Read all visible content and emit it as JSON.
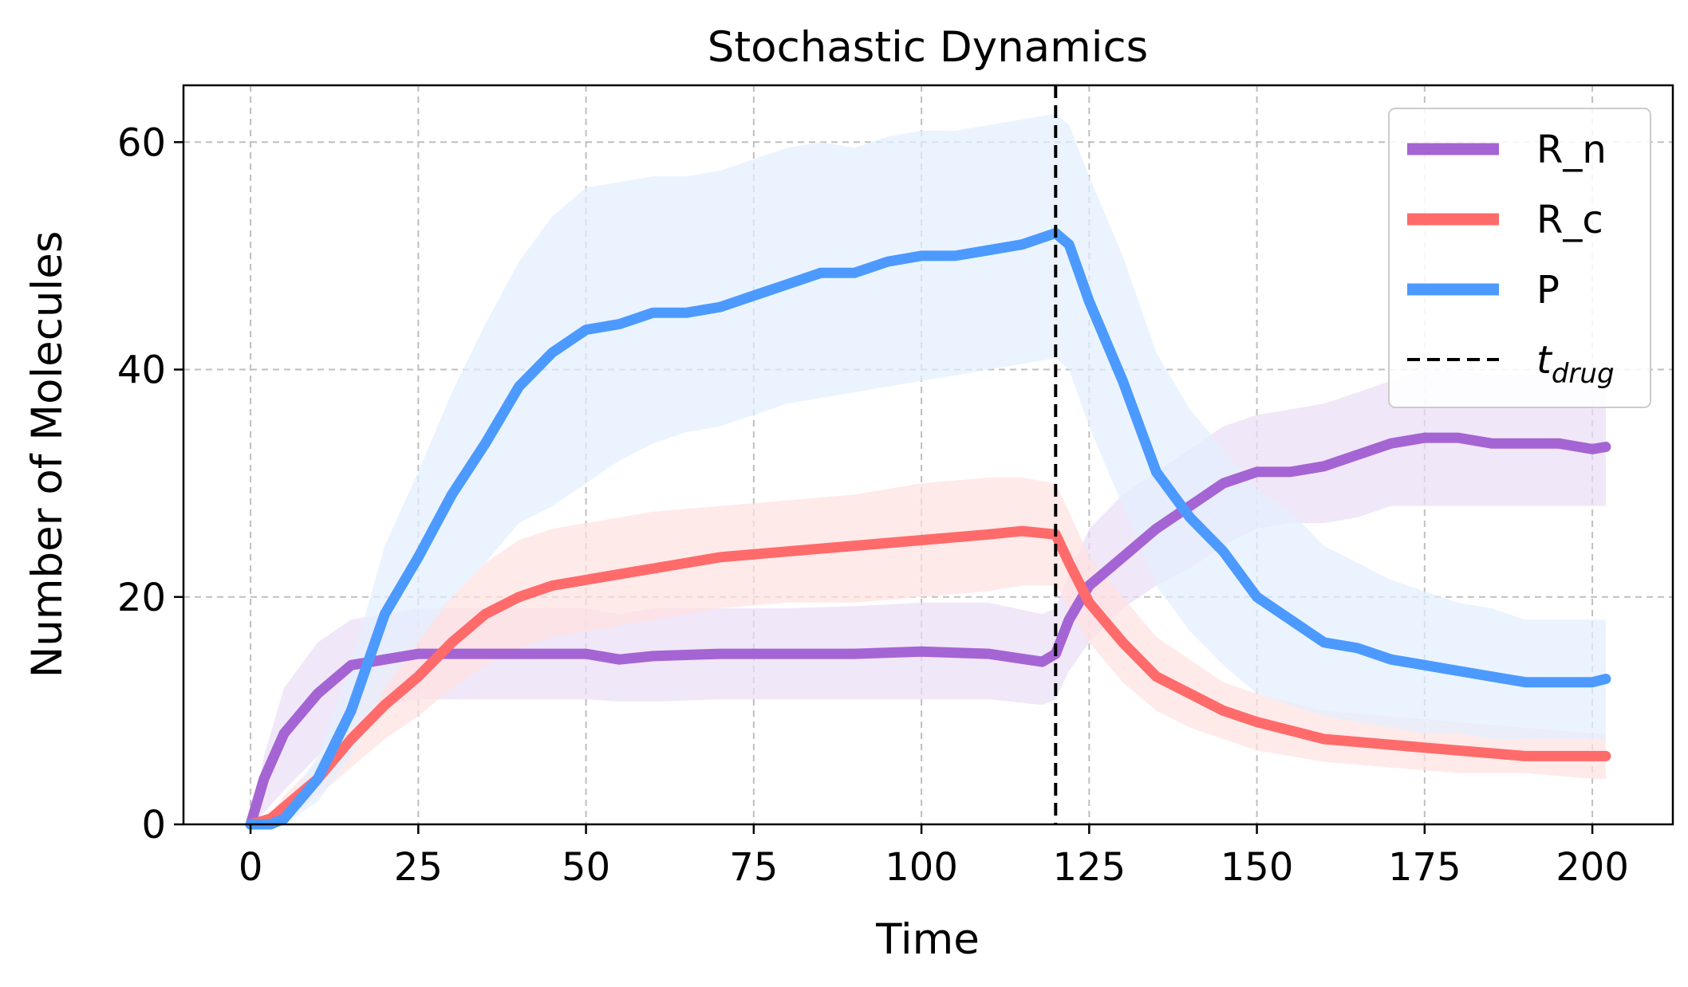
{
  "chart_data": {
    "type": "line",
    "title": "Stochastic Dynamics",
    "xlabel": "Time",
    "ylabel": "Number of Molecules",
    "xlim": [
      -10,
      212
    ],
    "ylim": [
      0,
      65
    ],
    "xticks": [
      0,
      25,
      50,
      75,
      100,
      125,
      150,
      175,
      200
    ],
    "yticks": [
      0,
      20,
      40,
      60
    ],
    "grid": true,
    "legend_position": "top-right",
    "vline": {
      "x": 120,
      "label_base": "t",
      "label_sub": "drug",
      "color": "#000000",
      "style": "dashed"
    },
    "series": [
      {
        "name": "R_n",
        "color": "#A564D3",
        "band_color": "#E9DDF5",
        "x": [
          0,
          2,
          5,
          10,
          15,
          20,
          25,
          30,
          40,
          50,
          55,
          60,
          70,
          80,
          90,
          100,
          110,
          118,
          120,
          122,
          125,
          130,
          135,
          140,
          145,
          150,
          155,
          160,
          165,
          170,
          175,
          180,
          185,
          190,
          195,
          200,
          202
        ],
        "y": [
          0,
          4,
          8,
          11.5,
          14,
          14.5,
          15,
          15,
          15,
          15,
          14.5,
          14.8,
          15,
          15,
          15,
          15.2,
          15,
          14.3,
          15,
          18,
          21,
          23.5,
          26,
          28,
          30,
          31,
          31,
          31.5,
          32.5,
          33.5,
          34,
          34,
          33.5,
          33.5,
          33.5,
          33,
          33.2
        ],
        "lower": [
          0,
          1,
          3,
          6,
          9.5,
          10.5,
          11,
          11,
          11,
          11,
          10.8,
          10.8,
          11,
          11,
          11,
          11,
          11,
          10.5,
          11,
          13.5,
          16,
          19,
          21,
          22.5,
          24.5,
          26,
          26.5,
          26.5,
          27,
          28,
          28,
          28,
          28,
          28,
          28,
          28,
          28
        ],
        "upper": [
          0,
          6,
          12,
          16,
          18,
          18.5,
          19,
          19,
          19,
          19,
          18.5,
          19,
          19,
          19,
          19.2,
          19.5,
          19.5,
          18.5,
          19,
          22,
          26,
          29,
          31,
          33,
          35,
          36,
          36.5,
          37,
          38,
          39,
          40,
          40,
          39.5,
          39.5,
          39.5,
          39,
          39
        ]
      },
      {
        "name": "R_c",
        "color": "#FF6B6B",
        "band_color": "#FFE1E1",
        "x": [
          0,
          3,
          5,
          10,
          15,
          20,
          25,
          30,
          35,
          40,
          45,
          50,
          55,
          60,
          70,
          80,
          90,
          100,
          110,
          115,
          120,
          122,
          125,
          130,
          135,
          140,
          145,
          150,
          160,
          170,
          180,
          190,
          200,
          202
        ],
        "y": [
          0,
          0.5,
          1.5,
          4,
          7.5,
          10.5,
          13,
          16,
          18.5,
          20,
          21,
          21.5,
          22,
          22.5,
          23.5,
          24,
          24.5,
          25,
          25.5,
          25.8,
          25.5,
          23,
          19.5,
          16,
          13,
          11.5,
          10,
          9,
          7.5,
          7,
          6.5,
          6,
          6,
          6
        ],
        "lower": [
          0,
          0,
          0.5,
          2.5,
          5,
          7.5,
          9.5,
          12,
          14,
          15.5,
          16.5,
          17,
          17.5,
          18,
          19,
          19.5,
          19.5,
          20,
          20.5,
          21,
          21,
          19,
          16,
          12.5,
          10,
          8.5,
          7.5,
          6.5,
          5.5,
          5,
          4.5,
          4.5,
          4,
          4
        ],
        "upper": [
          0,
          1,
          2.5,
          5.5,
          10,
          14,
          17,
          20,
          23,
          25,
          26,
          26.5,
          27,
          27.5,
          28,
          28.5,
          29,
          30,
          30.5,
          30.5,
          30,
          27.5,
          23.5,
          20,
          16.5,
          14.5,
          12.5,
          11.5,
          10,
          9.5,
          9,
          8.5,
          8,
          8
        ]
      },
      {
        "name": "P",
        "color": "#4C9AFF",
        "band_color": "#E3EFFD",
        "x": [
          0,
          3,
          5,
          10,
          15,
          20,
          25,
          30,
          35,
          40,
          45,
          50,
          55,
          60,
          65,
          70,
          75,
          80,
          85,
          90,
          95,
          100,
          105,
          110,
          115,
          120,
          122,
          125,
          130,
          135,
          140,
          145,
          150,
          155,
          160,
          165,
          170,
          175,
          180,
          185,
          190,
          195,
          200,
          202
        ],
        "y": [
          0,
          0,
          0.5,
          4,
          10,
          18.5,
          23.5,
          29,
          33.5,
          38.5,
          41.5,
          43.5,
          44,
          45,
          45,
          45.5,
          46.5,
          47.5,
          48.5,
          48.5,
          49.5,
          50,
          50,
          50.5,
          51,
          52,
          51,
          46,
          39,
          31,
          27,
          24,
          20,
          18,
          16,
          15.5,
          14.5,
          14,
          13.5,
          13,
          12.5,
          12.5,
          12.5,
          12.8
        ],
        "lower": [
          0,
          0,
          0,
          2,
          6,
          12,
          16,
          20,
          23,
          26.5,
          28,
          30,
          32,
          33.5,
          34.5,
          35,
          36,
          37,
          37.5,
          38,
          38.5,
          39,
          39.5,
          40,
          40.5,
          41,
          40,
          35,
          28,
          21,
          17,
          14,
          11.5,
          10.5,
          9.5,
          9,
          8.5,
          8,
          8,
          7.5,
          7.5,
          7.5,
          7.5,
          7.5
        ],
        "upper": [
          0,
          0.5,
          1.5,
          6,
          14,
          24.5,
          31,
          38,
          44,
          49.5,
          53.5,
          56,
          56.5,
          57,
          57,
          57.5,
          58.5,
          59.5,
          60,
          59.5,
          60.5,
          61,
          61,
          61.5,
          62,
          62.5,
          61.5,
          57,
          50,
          41.5,
          36.5,
          33,
          29.5,
          27.5,
          24.5,
          23,
          21.5,
          20.5,
          19.5,
          19,
          18,
          18,
          18,
          18
        ]
      }
    ]
  }
}
